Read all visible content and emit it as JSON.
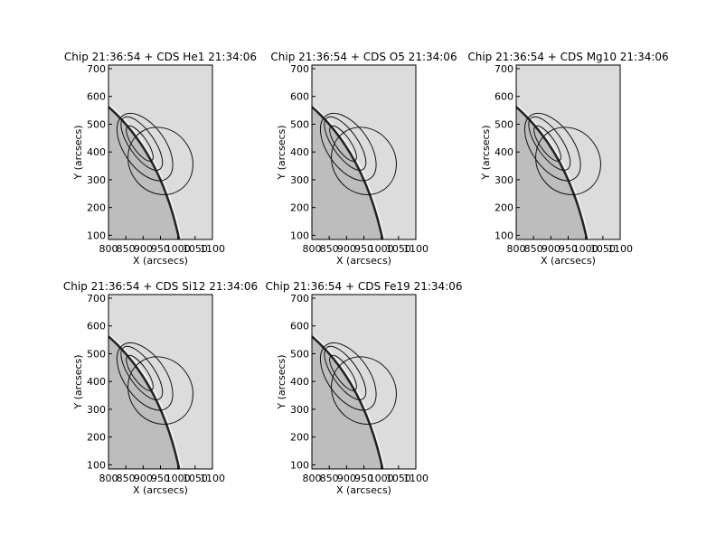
{
  "chart_data": [
    {
      "type": "image",
      "title": "Chip 21:36:54 + CDS He1 21:34:06",
      "x_label": "X (arcsecs)",
      "y_label": "Y (arcsecs)",
      "xlim": [
        800,
        1100
      ],
      "ylim": [
        85,
        713
      ],
      "xticks": [
        800,
        850,
        900,
        950,
        1000,
        1050,
        1100
      ],
      "yticks": [
        100,
        200,
        300,
        400,
        500,
        600,
        700
      ]
    },
    {
      "type": "image",
      "title": "Chip 21:36:54 + CDS O5 21:34:06",
      "x_label": "X (arcsecs)",
      "y_label": "Y (arcsecs)",
      "xlim": [
        800,
        1100
      ],
      "ylim": [
        85,
        713
      ],
      "xticks": [
        800,
        850,
        900,
        950,
        1000,
        1050,
        1100
      ],
      "yticks": [
        100,
        200,
        300,
        400,
        500,
        600,
        700
      ]
    },
    {
      "type": "image",
      "title": "Chip 21:36:54 + CDS Mg10 21:34:06",
      "x_label": "X (arcsecs)",
      "y_label": "Y (arcsecs)",
      "xlim": [
        800,
        1100
      ],
      "ylim": [
        85,
        713
      ],
      "xticks": [
        800,
        850,
        900,
        950,
        1000,
        1050,
        1100
      ],
      "yticks": [
        100,
        200,
        300,
        400,
        500,
        600,
        700
      ]
    },
    {
      "type": "image",
      "title": "Chip 21:36:54 + CDS Si12 21:34:06",
      "x_label": "X (arcsecs)",
      "y_label": "Y (arcsecs)",
      "xlim": [
        800,
        1100
      ],
      "ylim": [
        85,
        713
      ],
      "xticks": [
        800,
        850,
        900,
        950,
        1000,
        1050,
        1100
      ],
      "yticks": [
        100,
        200,
        300,
        400,
        500,
        600,
        700
      ]
    },
    {
      "type": "image",
      "title": "Chip 21:36:54 + CDS Fe19 21:34:06",
      "x_label": "X (arcsecs)",
      "y_label": "Y (arcsecs)",
      "xlim": [
        800,
        1100
      ],
      "ylim": [
        85,
        713
      ],
      "xticks": [
        800,
        850,
        900,
        950,
        1000,
        1050,
        1100
      ],
      "yticks": [
        100,
        200,
        300,
        400,
        500,
        600,
        700
      ]
    }
  ]
}
